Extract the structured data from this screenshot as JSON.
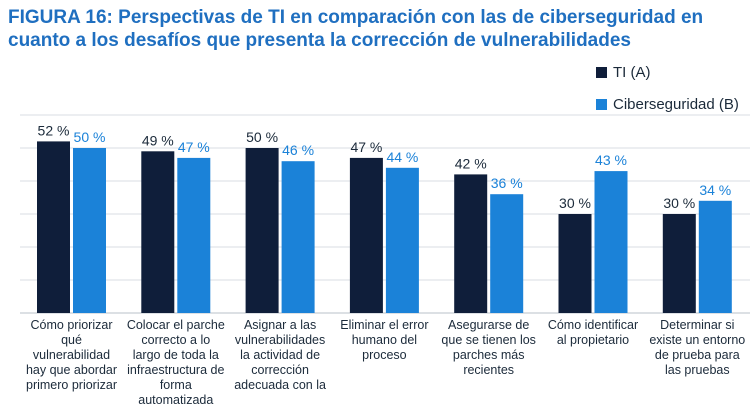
{
  "title": "FIGURA 16: Perspectivas de TI en comparación con las de ciberseguridad en cuanto a los desafíos que presenta la corrección de vulnerabilidades",
  "colors": {
    "title": "#1f6fc0",
    "series_a": "#0f1e3a",
    "series_b": "#1b82d8",
    "grid": "#d9dde3"
  },
  "chart_data": {
    "type": "bar",
    "title": "FIGURA 16: Perspectivas de TI en comparación con las de ciberseguridad en cuanto a los desafíos que presenta la corrección de vulnerabilidades",
    "categories": [
      "Cómo priorizar qué vulnerabilidad hay que abordar primero priorizar",
      "Colocar el parche correcto a lo largo de toda la infraestructura de forma automatizada",
      "Asignar a las vulnerabilidades la actividad de corrección adecuada con la",
      "Eliminar el error humano del proceso",
      "Asegurarse de que se tienen los parches más recientes",
      "Cómo identificar al propietario",
      "Determinar si existe un entorno de prueba para las pruebas"
    ],
    "series": [
      {
        "name": "TI (A)",
        "values": [
          52,
          49,
          50,
          47,
          42,
          30,
          30
        ],
        "labels": [
          "52 %",
          "49 %",
          "50 %",
          "47 %",
          "42 %",
          "30 %",
          "30 %"
        ]
      },
      {
        "name": "Ciberseguridad (B)",
        "values": [
          50,
          47,
          46,
          44,
          36,
          43,
          34
        ],
        "labels": [
          "50 %",
          "47 %",
          "46 %",
          "44 %",
          "36 %",
          "43 %",
          "34 %"
        ]
      }
    ],
    "ylim": [
      0,
      60
    ],
    "grid": true,
    "legend": "top-right",
    "xlabel": "",
    "ylabel": ""
  }
}
